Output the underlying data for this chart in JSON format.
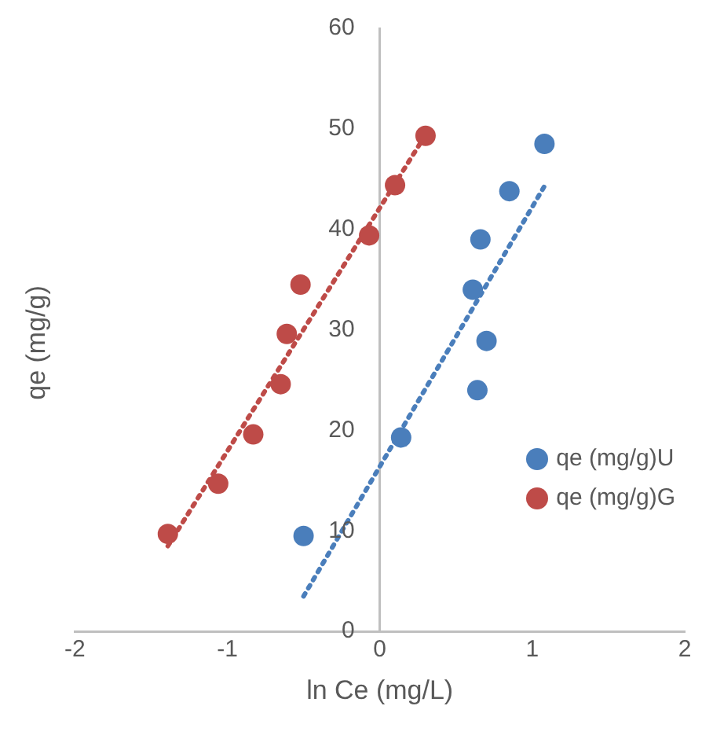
{
  "chart_data": {
    "type": "scatter",
    "xlabel": "ln Ce (mg/L)",
    "ylabel": "qe (mg/g)",
    "xlim": [
      -2,
      2
    ],
    "xticks": [
      -2,
      -1,
      0,
      1,
      2
    ],
    "ylim": [
      0,
      60
    ],
    "yticks": [
      0,
      10,
      20,
      30,
      40,
      50,
      60
    ],
    "grid": false,
    "legend": "right",
    "marker": "circle",
    "series": [
      {
        "name": "qe (mg/g)U",
        "color": "#4a7ebb",
        "x": [
          -0.5,
          0.14,
          0.64,
          0.7,
          0.61,
          0.66,
          0.85,
          1.08
        ],
        "values": [
          9.5,
          19.3,
          24.0,
          28.9,
          34.0,
          39.0,
          43.8,
          48.5
        ]
      },
      {
        "name": "qe (mg/g)G",
        "color": "#be4b48",
        "x": [
          -1.39,
          -1.06,
          -0.83,
          -0.65,
          -0.61,
          -0.52,
          -0.07,
          0.1,
          0.3
        ],
        "values": [
          9.7,
          14.7,
          19.6,
          24.6,
          29.6,
          34.5,
          39.4,
          44.4,
          49.3
        ]
      },
      {
        "type": "line",
        "line_style": "dotted",
        "marker": "none",
        "color": "#4a7ebb",
        "x": [
          -0.5,
          1.08
        ],
        "values": [
          3.5,
          44.3
        ]
      },
      {
        "type": "line",
        "line_style": "dotted",
        "marker": "none",
        "color": "#be4b48",
        "x": [
          -1.39,
          0.3
        ],
        "values": [
          8.5,
          49.4
        ]
      }
    ]
  }
}
